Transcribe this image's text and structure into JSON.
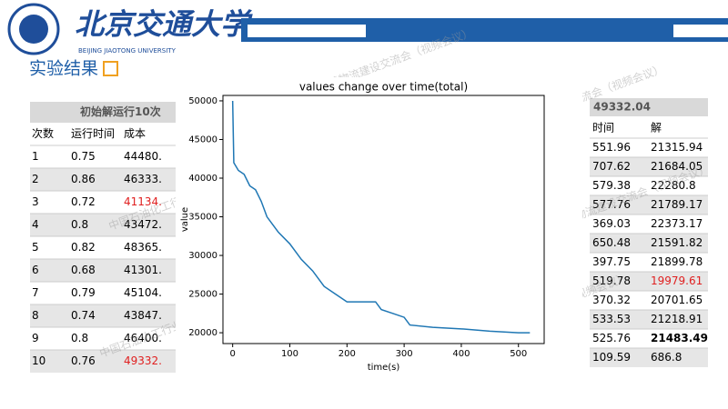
{
  "header": {
    "university": "北京交通大学",
    "university_en": "BEIJING JIAOTONG UNIVERSITY"
  },
  "slide_title": "实验结果",
  "watermark": "中国石油化工行业智慧物流建设交流会（视频会议）",
  "left_table": {
    "header": "初始解运行10次",
    "columns": [
      "次数",
      "运行时间",
      "成本"
    ],
    "rows": [
      [
        "1",
        "0.75",
        "44480."
      ],
      [
        "2",
        "0.86",
        "46333."
      ],
      [
        "3",
        "0.72",
        "41134."
      ],
      [
        "4",
        "0.8",
        "43472."
      ],
      [
        "5",
        "0.82",
        "48365."
      ],
      [
        "6",
        "0.68",
        "41301."
      ],
      [
        "7",
        "0.79",
        "45104."
      ],
      [
        "8",
        "0.74",
        "43847."
      ],
      [
        "9",
        "0.8",
        "46400."
      ],
      [
        "10",
        "0.76",
        "49332."
      ]
    ],
    "highlight_color": "#e02020",
    "highlight_cells": [
      [
        2,
        2
      ],
      [
        9,
        2
      ]
    ]
  },
  "right_table": {
    "header": "49332.04",
    "columns": [
      "时间",
      "解"
    ],
    "rows": [
      [
        "551.96",
        "21315.94"
      ],
      [
        "707.62",
        "21684.05"
      ],
      [
        "579.38",
        "22280.8"
      ],
      [
        "577.76",
        "21789.17"
      ],
      [
        "369.03",
        "22373.17"
      ],
      [
        "650.48",
        "21591.82"
      ],
      [
        "397.75",
        "21899.78"
      ],
      [
        "519.78",
        "19979.61"
      ],
      [
        "370.32",
        "20701.65"
      ],
      [
        "533.53",
        "21218.91"
      ],
      [
        "525.76",
        "21483.49"
      ],
      [
        "109.59",
        "686.8"
      ]
    ],
    "highlight_color": "#e02020",
    "highlight_cells": [
      [
        7,
        1
      ]
    ],
    "bold_cells": [
      [
        10,
        1
      ]
    ]
  },
  "chart_data": {
    "type": "line",
    "title": "values change over time(total)",
    "x_label": "time(s)",
    "y_label": "value",
    "x": [
      0,
      2,
      10,
      20,
      30,
      40,
      50,
      60,
      70,
      80,
      100,
      120,
      140,
      160,
      180,
      200,
      250,
      260,
      280,
      300,
      310,
      350,
      400,
      450,
      500,
      520
    ],
    "series": [
      {
        "color": "#1f77b4",
        "values": [
          50000,
          42000,
          41000,
          40500,
          39000,
          38500,
          37000,
          35000,
          34000,
          33000,
          31500,
          29500,
          28000,
          26000,
          25000,
          24000,
          24000,
          23000,
          22500,
          22000,
          21000,
          20700,
          20500,
          20200,
          20000,
          20000
        ]
      }
    ],
    "xlim": [
      -17,
      545
    ],
    "ylim": [
      18600,
      50700
    ],
    "xticks": [
      0,
      100,
      200,
      300,
      400,
      500
    ],
    "yticks": [
      20000,
      25000,
      30000,
      35000,
      40000,
      45000,
      50000
    ]
  }
}
